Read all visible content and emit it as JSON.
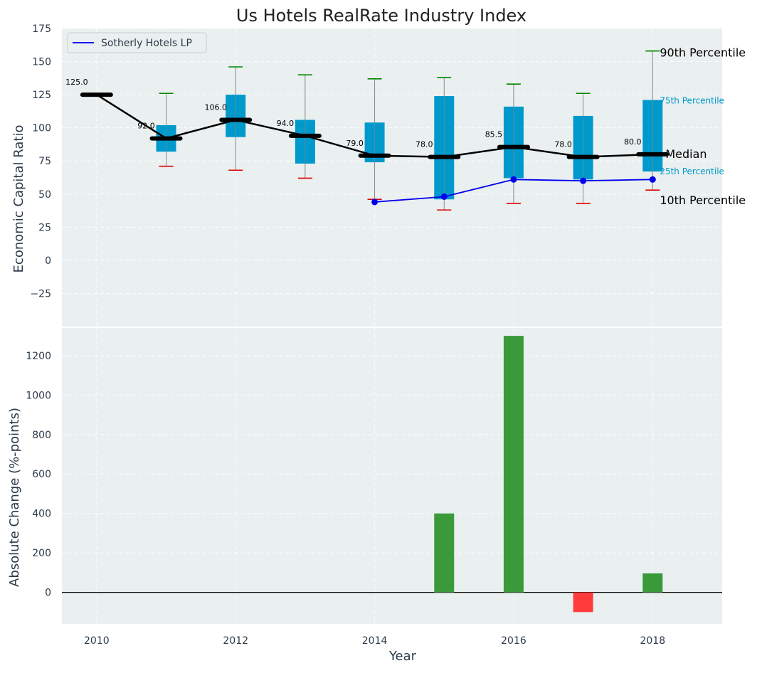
{
  "chart_data": [
    {
      "type": "boxplot",
      "title": "Us Hotels RealRate Industry Index",
      "xlabel": "",
      "ylabel": "Economic Capital Ratio",
      "ylim": [
        -50,
        175
      ],
      "xlim": [
        2009.5,
        2019
      ],
      "grid": true,
      "yticks": [
        -25,
        0,
        25,
        50,
        75,
        100,
        125,
        150,
        175
      ],
      "yticklabels": [
        "−25",
        "0",
        "25",
        "50",
        "75",
        "100",
        "125",
        "150",
        "175"
      ],
      "boxes": [
        {
          "year": 2010,
          "p10": 125,
          "p25": 125,
          "median": 125,
          "p75": 125,
          "p90": 125,
          "label": "125.0"
        },
        {
          "year": 2011,
          "p10": 71,
          "p25": 82,
          "median": 92,
          "p75": 102,
          "p90": 126,
          "label": "92.0"
        },
        {
          "year": 2012,
          "p10": 68,
          "p25": 93,
          "median": 106,
          "p75": 125,
          "p90": 146,
          "label": "106.0"
        },
        {
          "year": 2013,
          "p10": 62,
          "p25": 73,
          "median": 94,
          "p75": 106,
          "p90": 140,
          "label": "94.0"
        },
        {
          "year": 2014,
          "p10": 46,
          "p25": 74,
          "median": 79,
          "p75": 104,
          "p90": 137,
          "label": "79.0"
        },
        {
          "year": 2015,
          "p10": 38,
          "p25": 46,
          "median": 78,
          "p75": 124,
          "p90": 138,
          "label": "78.0"
        },
        {
          "year": 2016,
          "p10": 43,
          "p25": 62,
          "median": 85.5,
          "p75": 116,
          "p90": 133,
          "label": "85.5"
        },
        {
          "year": 2017,
          "p10": 43,
          "p25": 61,
          "median": 78,
          "p75": 109,
          "p90": 126,
          "label": "78.0"
        },
        {
          "year": 2018,
          "p10": 53,
          "p25": 67,
          "median": 80,
          "p75": 121,
          "p90": 158,
          "label": "80.0"
        }
      ],
      "series": [
        {
          "name": "Sotherly Hotels LP",
          "x": [
            2014,
            2015,
            2016,
            2017,
            2018
          ],
          "values": [
            44,
            48,
            61,
            60,
            61
          ],
          "color": "#0000ee"
        }
      ],
      "annotations": {
        "p90": "90th Percentile",
        "p75": "75th Percentile",
        "median": "Median",
        "p25": "25th Percentile",
        "p10": "10th Percentile"
      },
      "legend": {
        "position": "top-left",
        "entries": [
          "Sotherly Hotels LP"
        ]
      }
    },
    {
      "type": "bar",
      "xlabel": "Year",
      "ylabel": "Absolute Change (%-points)",
      "ylim": [
        -160,
        1340
      ],
      "xlim": [
        2009.5,
        2019
      ],
      "grid": true,
      "x": [
        2015,
        2016,
        2017,
        2018
      ],
      "values": [
        400,
        1300,
        -100,
        96
      ],
      "xticks": [
        2010,
        2012,
        2014,
        2016,
        2018
      ],
      "xticklabels": [
        "2010",
        "2012",
        "2014",
        "2016",
        "2018"
      ],
      "yticks": [
        0,
        200,
        400,
        600,
        800,
        1000,
        1200
      ],
      "yticklabels": [
        "0",
        "200",
        "400",
        "600",
        "800",
        "1000",
        "1200"
      ]
    }
  ],
  "colors": {
    "plot_bg": "#eaeff0",
    "box": "#0099cc",
    "whisker": "#888888",
    "whisker_high": "#008800",
    "whisker_low": "#dd0000",
    "median": "#000000",
    "company": "#0000ee",
    "positive": "#3a9a3a",
    "negative": "#ff3b3b",
    "axis_text": "#2d3a4a",
    "annotation_cyan": "#0099cc"
  }
}
